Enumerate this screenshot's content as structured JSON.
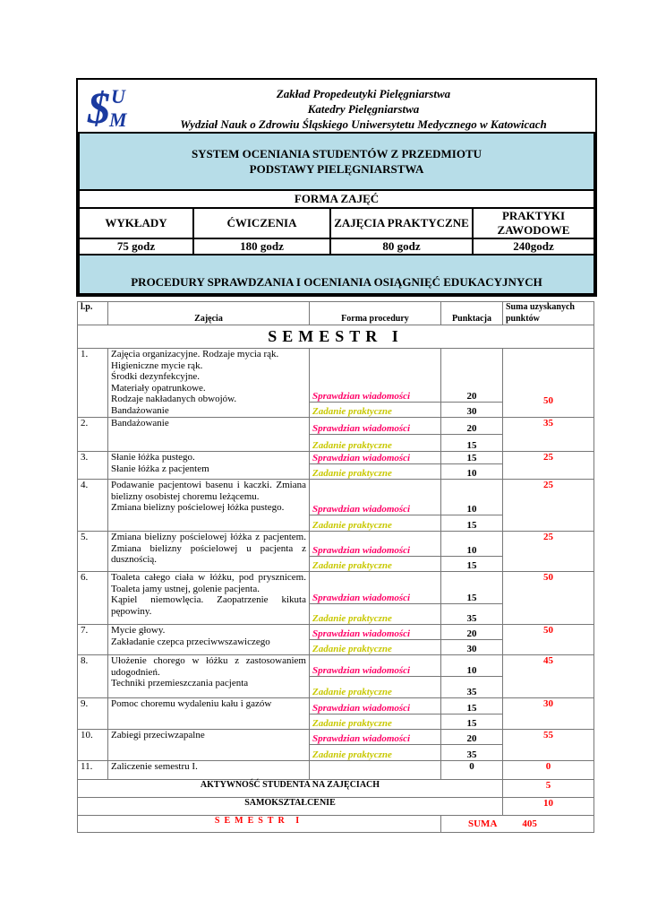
{
  "header": {
    "logo_text": "SUM",
    "line1": "Zakład Propedeutyki Pielęgniarstwa",
    "line2": "Katedry Pielęgniarstwa",
    "line3": "Wydział Nauk o Zdrowiu Śląskiego Uniwersytetu Medycznego w Katowicach",
    "system_title1": "SYSTEM OCENIANIA STUDENTÓW Z PRZEDMIOTU",
    "system_title2": "PODSTAWY PIELĘGNIARSTWA",
    "forma_title": "FORMA ZAJĘĆ",
    "forms": [
      {
        "label": "WYKŁADY",
        "hours": "75 godz"
      },
      {
        "label": "ĆWICZENIA",
        "hours": "180 godz"
      },
      {
        "label": "ZAJĘCIA PRAKTYCZNE",
        "hours": "80 godz"
      },
      {
        "label": "PRAKTYKI ZAWODOWE",
        "hours": "240godz"
      }
    ],
    "procedures_title": "PROCEDURY SPRAWDZANIA I OCENIANIA OSIĄGNIĘĆ EDUKACYJNYCH"
  },
  "table": {
    "columns": [
      "l.p.",
      "Zajęcia",
      "Forma procedury",
      "Punktacja",
      "Suma uzyskanych punktów"
    ],
    "semester": "SEMESTR I",
    "rows": [
      {
        "lp": "1.",
        "topic": "Zajęcia organizacyjne. Rodzaje  mycia rąk.\nHigieniczne mycie rąk.\nŚrodki dezynfekcyjne.\nMateriały opatrunkowe.\nRodzaje nakładanych obwojów.\nBandażowanie",
        "p1": "Sprawdzian wiadomości",
        "s1": "20",
        "p2": "Zadanie praktyczne",
        "s2": "30",
        "sum": "50"
      },
      {
        "lp": "2.",
        "topic": "Bandażowanie",
        "p1": "Sprawdzian wiadomości",
        "s1": "20",
        "p2": "Zadanie praktyczne",
        "s2": "15",
        "sum": "35"
      },
      {
        "lp": "3.",
        "topic": "Słanie łóżka pustego.\nSłanie łóżka z pacjentem",
        "p1": "Sprawdzian wiadomości",
        "s1": "15",
        "p2": "Zadanie praktyczne",
        "s2": "10",
        "sum": "25"
      },
      {
        "lp": "4.",
        "topic": "Podawanie pacjentowi basenu i kaczki. Zmiana bielizny osobistej choremu leżącemu.\n Zmiana bielizny pościelowej łóżka pustego.",
        "p1": "Sprawdzian wiadomości",
        "s1": "10",
        "p2": "Zadanie praktyczne",
        "s2": "15",
        "sum": "25"
      },
      {
        "lp": "5.",
        "topic": "Zmiana bielizny pościelowej łóżka z pacjentem. Zmiana bielizny pościelowej u pacjenta z dusznością.",
        "p1": "Sprawdzian wiadomości",
        "s1": "10",
        "p2": "Zadanie praktyczne",
        "s2": "15",
        "sum": "25"
      },
      {
        "lp": "6.",
        "topic": "Toaleta całego ciała w łóżku, pod prysznicem. Toaleta jamy ustnej, golenie pacjenta.\nKąpiel niemowlęcia. Zaopatrzenie kikuta pępowiny.",
        "p1": "Sprawdzian wiadomości",
        "s1": "15",
        "p2": "Zadanie praktyczne",
        "s2": "35",
        "sum": "50"
      },
      {
        "lp": "7.",
        "topic": "Mycie głowy.\nZakładanie czepca przeciwwszawiczego",
        "p1": "Sprawdzian wiadomości",
        "s1": "20",
        "p2": "Zadanie praktyczne",
        "s2": "30",
        "sum": "50"
      },
      {
        "lp": "8.",
        "topic": "Ułożenie chorego w łóżku z zastosowaniem udogodnień.\nTechniki przemieszczania pacjenta",
        "p1": "Sprawdzian wiadomości",
        "s1": "10",
        "p2": "Zadanie praktyczne",
        "s2": "35",
        "sum": "45"
      },
      {
        "lp": "9.",
        "topic": "Pomoc choremu wydaleniu kału i gazów",
        "p1": "Sprawdzian wiadomości",
        "s1": "15",
        "p2": "Zadanie praktyczne",
        "s2": "15",
        "sum": "30"
      },
      {
        "lp": "10.",
        "topic": "Zabiegi przeciwzapalne",
        "p1": "Sprawdzian wiadomości",
        "s1": "20",
        "p2": "Zadanie praktyczne",
        "s2": "35",
        "sum": "55"
      }
    ],
    "final_row": {
      "lp": "11.",
      "topic": "Zaliczenie semestru I.",
      "points": "0",
      "sum": "0"
    },
    "activity": {
      "label": "AKTYWNOŚĆ STUDENTA NA ZAJĘCIACH",
      "sum": "5"
    },
    "self_study": {
      "label": "SAMOKSZTAŁCENIE",
      "sum": "10"
    },
    "total": {
      "label": "SEMESTR I",
      "suma_label": "SUMA",
      "value": "405"
    }
  },
  "colors": {
    "band": "#b7dde8",
    "test": "#ff0066",
    "practical": "#c8c800",
    "sum": "#ff0000",
    "logo": "#1a3aa0"
  }
}
